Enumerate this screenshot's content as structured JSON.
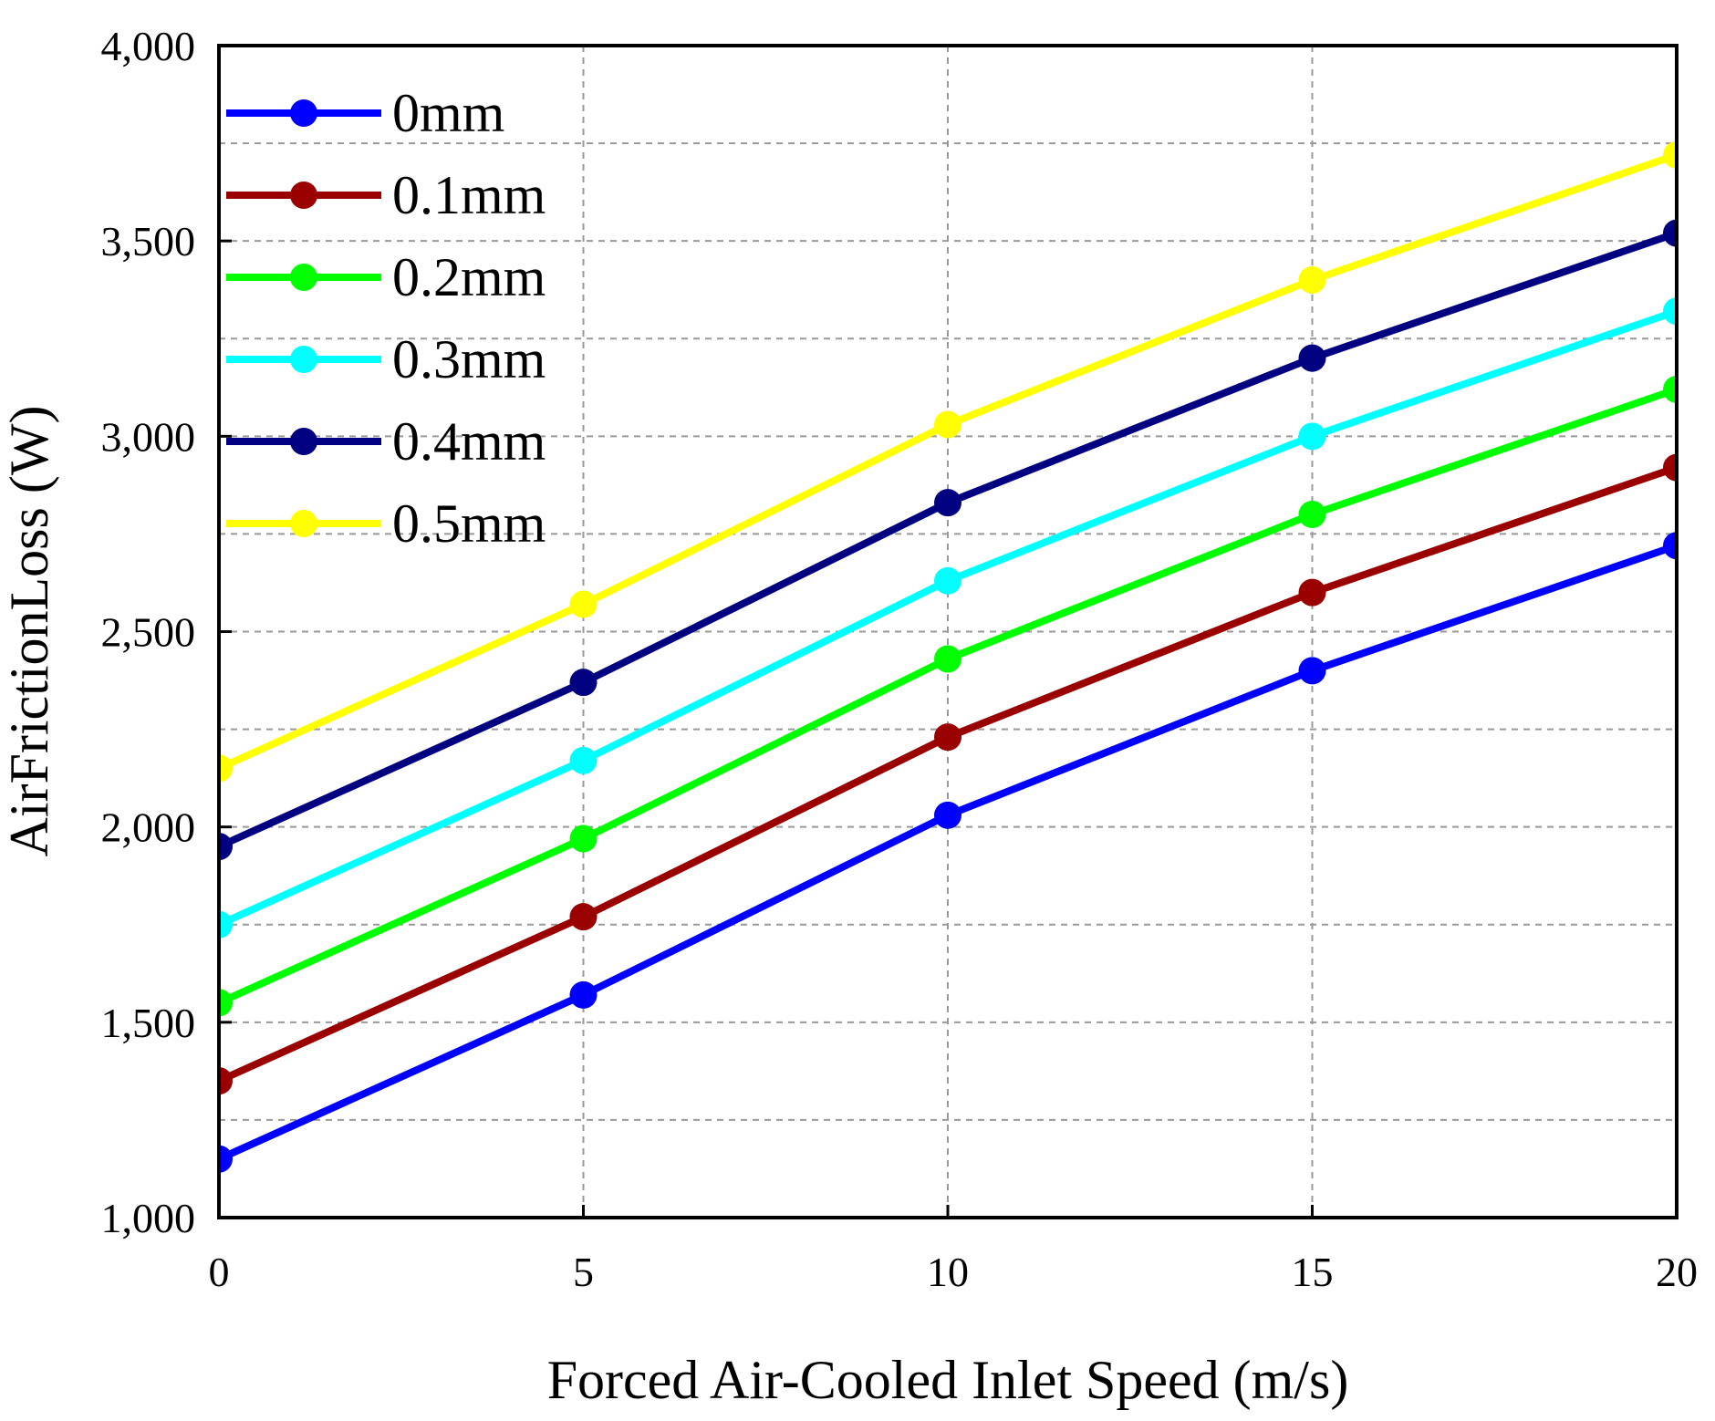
{
  "chart_data": {
    "type": "line",
    "title": "",
    "xlabel": "Forced Air-Cooled Inlet Speed (m/s)",
    "ylabel": "AirFrictionLoss (W)",
    "x": [
      0,
      5,
      10,
      15,
      20
    ],
    "xlim": [
      0,
      20
    ],
    "ylim": [
      1000,
      4000
    ],
    "xticks": [
      0,
      5,
      10,
      15,
      20
    ],
    "xtick_labels": [
      "0",
      "5",
      "10",
      "15",
      "20"
    ],
    "yticks": [
      1000,
      1500,
      2000,
      2500,
      3000,
      3500,
      4000
    ],
    "ytick_labels": [
      "1,000",
      "1,500",
      "2,000",
      "2,500",
      "3,000",
      "3,500",
      "4,000"
    ],
    "grid_y_step": 250,
    "grid": true,
    "legend_position": "top-left",
    "series": [
      {
        "name": "0mm",
        "color": "#0000ff",
        "values": [
          1150,
          1570,
          2030,
          2400,
          2720
        ]
      },
      {
        "name": "0.1mm",
        "color": "#9b0000",
        "values": [
          1350,
          1770,
          2230,
          2600,
          2920
        ]
      },
      {
        "name": "0.2mm",
        "color": "#00ff00",
        "values": [
          1550,
          1970,
          2430,
          2800,
          3120
        ]
      },
      {
        "name": "0.3mm",
        "color": "#00ffff",
        "values": [
          1750,
          2170,
          2630,
          3000,
          3320
        ]
      },
      {
        "name": "0.4mm",
        "color": "#000080",
        "values": [
          1950,
          2370,
          2830,
          3200,
          3520
        ]
      },
      {
        "name": "0.5mm",
        "color": "#ffff00",
        "values": [
          2150,
          2570,
          3030,
          3400,
          3720
        ]
      }
    ]
  }
}
